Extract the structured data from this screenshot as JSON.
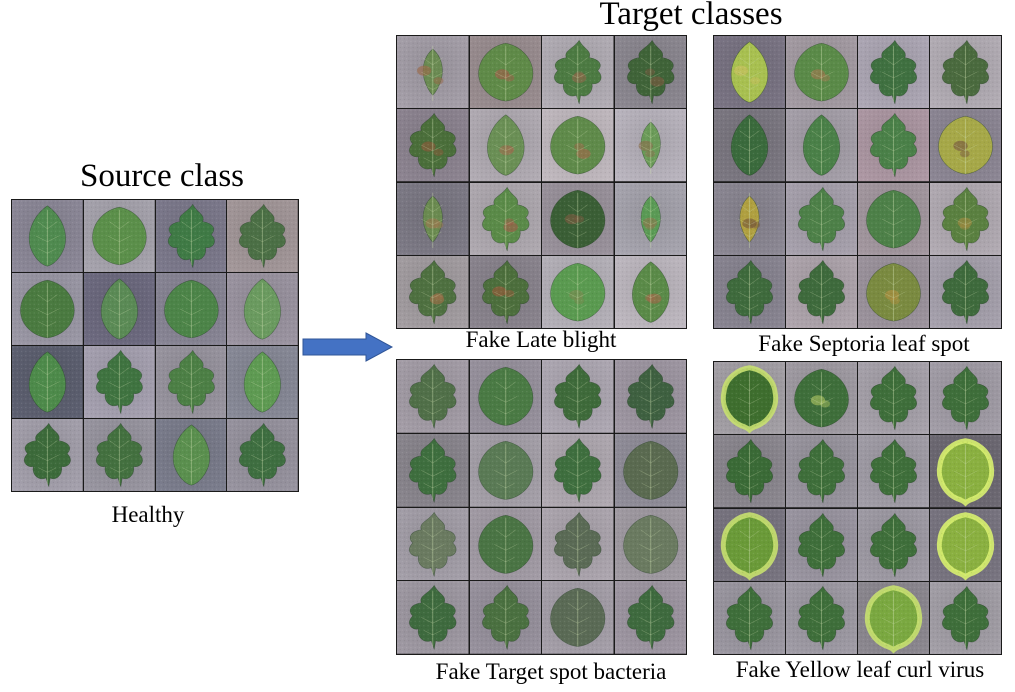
{
  "source": {
    "title": "Source class",
    "caption": "Healthy",
    "tiles": [
      {
        "leaf": "#4f8a4f",
        "bg": "#8e8a9a",
        "shape": "oval"
      },
      {
        "leaf": "#5b8f4a",
        "bg": "#a9a6b0",
        "shape": "wide"
      },
      {
        "leaf": "#3f7a45",
        "bg": "#7e7b8e",
        "shape": "lobed"
      },
      {
        "leaf": "#4b6f45",
        "bg": "#a69a9c",
        "shape": "lobed"
      },
      {
        "leaf": "#4a7a40",
        "bg": "#9d9aa8",
        "shape": "wide"
      },
      {
        "leaf": "#5a8a55",
        "bg": "#6f6c82",
        "shape": "oval"
      },
      {
        "leaf": "#4c8448",
        "bg": "#8a8797",
        "shape": "wide"
      },
      {
        "leaf": "#6a9a5f",
        "bg": "#9e97a4",
        "shape": "oval"
      },
      {
        "leaf": "#4d8a4a",
        "bg": "#5e6172",
        "shape": "oval"
      },
      {
        "leaf": "#3f7340",
        "bg": "#a9a4b4",
        "shape": "lobed"
      },
      {
        "leaf": "#4c7f45",
        "bg": "#9b97a2",
        "shape": "lobed"
      },
      {
        "leaf": "#5e9a52",
        "bg": "#8a8c9a",
        "shape": "oval"
      },
      {
        "leaf": "#3c6a3a",
        "bg": "#a7a3af",
        "shape": "lobed"
      },
      {
        "leaf": "#43703f",
        "bg": "#9b98a3",
        "shape": "lobed"
      },
      {
        "leaf": "#5a8f4e",
        "bg": "#7d7f8f",
        "shape": "oval"
      },
      {
        "leaf": "#3e6e40",
        "bg": "#9a96a2",
        "shape": "lobed"
      }
    ]
  },
  "arrow": {
    "color": "#4472c4",
    "stroke": "#2f5597"
  },
  "targets": {
    "title": "Target classes",
    "groups": [
      {
        "caption": "Fake Late blight",
        "tiles": [
          {
            "leaf": "#6a8a52",
            "bg": "#a8a2ac",
            "shape": "small",
            "spot": "#9a6a4a"
          },
          {
            "leaf": "#5f8a48",
            "bg": "#9c8f92",
            "shape": "wide",
            "spot": "#a0604a"
          },
          {
            "leaf": "#4c7a42",
            "bg": "#b5b0b8",
            "shape": "lobed",
            "spot": "#8a6a4a"
          },
          {
            "leaf": "#3f6338",
            "bg": "#8e8a93",
            "shape": "lobed",
            "spot": "#7a5a40"
          },
          {
            "leaf": "#4a6e3a",
            "bg": "#8f8693",
            "shape": "lobed",
            "spot": "#8a5a3a"
          },
          {
            "leaf": "#6a8f55",
            "bg": "#b4aeb6",
            "shape": "oval",
            "spot": "#9a7050"
          },
          {
            "leaf": "#5f8a4a",
            "bg": "#c4bcc2",
            "shape": "wide",
            "spot": "#a06a4a"
          },
          {
            "leaf": "#6a9a58",
            "bg": "#bdb8c2",
            "shape": "small",
            "spot": "#8a7050"
          },
          {
            "leaf": "#6a8a50",
            "bg": "#7f7c88",
            "shape": "small",
            "spot": "#9a7a50"
          },
          {
            "leaf": "#5a8a48",
            "bg": "#b2acb3",
            "shape": "lobed",
            "spot": "#a0604a"
          },
          {
            "leaf": "#3a5e35",
            "bg": "#9c949e",
            "shape": "wide",
            "spot": "#7a5a40"
          },
          {
            "leaf": "#5a9a55",
            "bg": "#aaa8b2",
            "shape": "small",
            "spot": "#8a7a50"
          },
          {
            "leaf": "#4e7040",
            "bg": "#a6a0a4",
            "shape": "lobed",
            "spot": "#a0704a"
          },
          {
            "leaf": "#4c6e3c",
            "bg": "#8c8690",
            "shape": "lobed",
            "spot": "#9a5a3a"
          },
          {
            "leaf": "#5a9a50",
            "bg": "#b8b4bc",
            "shape": "wide",
            "spot": "#7a8a50"
          },
          {
            "leaf": "#5a8a48",
            "bg": "#c2bcc4",
            "shape": "oval",
            "spot": "#a06a4a"
          }
        ]
      },
      {
        "caption": "Fake Septoria leaf spot",
        "tiles": [
          {
            "leaf": "#a8c050",
            "bg": "#7c7686",
            "shape": "oval",
            "spot": "#c8c060"
          },
          {
            "leaf": "#5a8a48",
            "bg": "#a79ea6",
            "shape": "wide",
            "spot": "#a07a50"
          },
          {
            "leaf": "#3f7040",
            "bg": "#b0aab8",
            "shape": "lobed",
            "spot": ""
          },
          {
            "leaf": "#4a6a3e",
            "bg": "#b6b0b8",
            "shape": "lobed",
            "spot": ""
          },
          {
            "leaf": "#3a6a3c",
            "bg": "#7e7a84",
            "shape": "oval",
            "spot": ""
          },
          {
            "leaf": "#4a8048",
            "bg": "#a9a3ad",
            "shape": "oval",
            "spot": ""
          },
          {
            "leaf": "#4a8048",
            "bg": "#b09aa6",
            "shape": "lobed",
            "spot": ""
          },
          {
            "leaf": "#a6a848",
            "bg": "#8e8896",
            "shape": "wide",
            "spot": "#7a5a40"
          },
          {
            "leaf": "#b0a040",
            "bg": "#8e8a96",
            "shape": "small",
            "spot": "#7a5a3a"
          },
          {
            "leaf": "#4d8048",
            "bg": "#aaa4b0",
            "shape": "lobed",
            "spot": ""
          },
          {
            "leaf": "#4d8048",
            "bg": "#a69aa2",
            "shape": "wide",
            "spot": ""
          },
          {
            "leaf": "#5a8040",
            "bg": "#b5aeb6",
            "shape": "lobed",
            "spot": "#a08a40"
          },
          {
            "leaf": "#3e6a3c",
            "bg": "#8b8794",
            "shape": "lobed",
            "spot": ""
          },
          {
            "leaf": "#3e6a3c",
            "bg": "#b2a8b0",
            "shape": "lobed",
            "spot": ""
          },
          {
            "leaf": "#7a8a40",
            "bg": "#9f96a0",
            "shape": "wide",
            "spot": "#b09040"
          },
          {
            "leaf": "#3e6a3c",
            "bg": "#a9a4b0",
            "shape": "lobed",
            "spot": ""
          }
        ]
      },
      {
        "caption": "Fake Target spot bacteria",
        "tiles": [
          {
            "leaf": "#506f48",
            "bg": "#a7a0aa",
            "shape": "lobed",
            "spot": ""
          },
          {
            "leaf": "#4a7a44",
            "bg": "#9a94a0",
            "shape": "wide",
            "spot": ""
          },
          {
            "leaf": "#3e6a3a",
            "bg": "#b1abb6",
            "shape": "lobed",
            "spot": ""
          },
          {
            "leaf": "#3e6040",
            "bg": "#a29aa6",
            "shape": "lobed",
            "spot": ""
          },
          {
            "leaf": "#3e6e3e",
            "bg": "#8c8890",
            "shape": "lobed",
            "spot": ""
          },
          {
            "leaf": "#5a7a55",
            "bg": "#a8a3ac",
            "shape": "wide",
            "spot": ""
          },
          {
            "leaf": "#3e6e3e",
            "bg": "#b3acb4",
            "shape": "lobed",
            "spot": ""
          },
          {
            "leaf": "#5a6a50",
            "bg": "#93909c",
            "shape": "wide",
            "spot": ""
          },
          {
            "leaf": "#6a7a60",
            "bg": "#a7a2ac",
            "shape": "lobed",
            "spot": ""
          },
          {
            "leaf": "#4a7444",
            "bg": "#a59ea8",
            "shape": "wide",
            "spot": ""
          },
          {
            "leaf": "#5a6a55",
            "bg": "#b0a9b2",
            "shape": "lobed",
            "spot": ""
          },
          {
            "leaf": "#6a7a60",
            "bg": "#a49ea6",
            "shape": "wide",
            "spot": ""
          },
          {
            "leaf": "#3e6a3e",
            "bg": "#a29ca6",
            "shape": "lobed",
            "spot": ""
          },
          {
            "leaf": "#4a7040",
            "bg": "#9a94a0",
            "shape": "lobed",
            "spot": ""
          },
          {
            "leaf": "#5a6a55",
            "bg": "#a8a2ac",
            "shape": "wide",
            "spot": ""
          },
          {
            "leaf": "#3e6a3e",
            "bg": "#a29aa6",
            "shape": "lobed",
            "spot": ""
          }
        ]
      },
      {
        "caption": "Fake Yellow leaf curl virus",
        "tiles": [
          {
            "leaf": "#3e6e2e",
            "bg": "#a6a2a8",
            "shape": "curl",
            "spot": "#c8e070"
          },
          {
            "leaf": "#3e6e3a",
            "bg": "#a39ea6",
            "shape": "wide",
            "spot": "#a8c060"
          },
          {
            "leaf": "#3e6e3a",
            "bg": "#aaa5ae",
            "shape": "lobed",
            "spot": ""
          },
          {
            "leaf": "#3e6e3a",
            "bg": "#a5a0aa",
            "shape": "lobed",
            "spot": ""
          },
          {
            "leaf": "#3a6a36",
            "bg": "#8e8a92",
            "shape": "lobed",
            "spot": ""
          },
          {
            "leaf": "#3e6e3a",
            "bg": "#9c98a2",
            "shape": "lobed",
            "spot": ""
          },
          {
            "leaf": "#3e6e3a",
            "bg": "#a4a0aa",
            "shape": "lobed",
            "spot": ""
          },
          {
            "leaf": "#8ab040",
            "bg": "#6e6a74",
            "shape": "curl",
            "spot": "#d8f070"
          },
          {
            "leaf": "#6a9a38",
            "bg": "#7a7682",
            "shape": "curl",
            "spot": "#c8e070"
          },
          {
            "leaf": "#3e6e3a",
            "bg": "#9d98a4",
            "shape": "lobed",
            "spot": ""
          },
          {
            "leaf": "#3e6e3a",
            "bg": "#a29ea8",
            "shape": "lobed",
            "spot": ""
          },
          {
            "leaf": "#8ab040",
            "bg": "#7a7682",
            "shape": "curl",
            "spot": "#d8f070"
          },
          {
            "leaf": "#3e6e3a",
            "bg": "#9e9aa4",
            "shape": "lobed",
            "spot": ""
          },
          {
            "leaf": "#3e6e3a",
            "bg": "#a29ea8",
            "shape": "lobed",
            "spot": ""
          },
          {
            "leaf": "#7aa840",
            "bg": "#8e8a92",
            "shape": "curl",
            "spot": "#c8e070"
          },
          {
            "leaf": "#3e6e3a",
            "bg": "#a6a2aa",
            "shape": "lobed",
            "spot": ""
          }
        ]
      }
    ]
  }
}
